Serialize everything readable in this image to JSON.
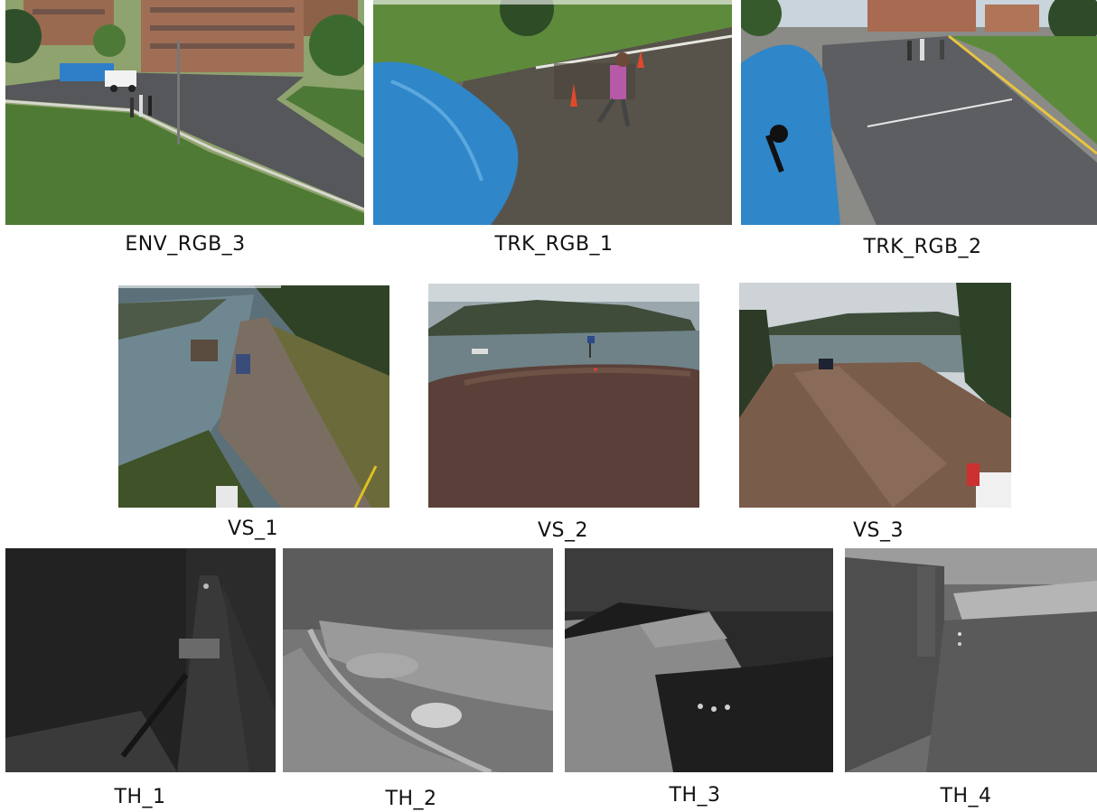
{
  "captions": {
    "env_rgb_3": "ENV_RGB_3",
    "trk_rgb_1": "TRK_RGB_1",
    "trk_rgb_2": "TRK_RGB_2",
    "vs_1": "VS_1",
    "vs_2": "VS_2",
    "vs_3": "VS_3",
    "th_1": "TH_1",
    "th_2": "TH_2",
    "th_3": "TH_3",
    "th_4": "TH_4"
  },
  "colors": {
    "background": "#ffffff",
    "caption_text": "#111111",
    "grass": "#4f7a34",
    "road": "#545659",
    "tarp": "#2f86c8",
    "water": "#6f8790",
    "gravel": "#5a4038"
  }
}
